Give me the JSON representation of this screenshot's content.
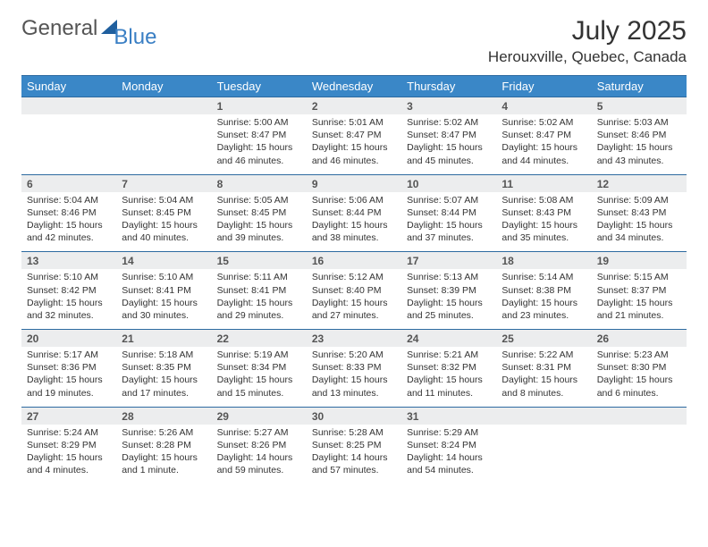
{
  "brand": {
    "general": "General",
    "blue": "Blue"
  },
  "title": "July 2025",
  "location": "Herouxville, Quebec, Canada",
  "colors": {
    "header_bg": "#3a87c7",
    "header_border": "#2d6aa0",
    "daynum_bg": "#ecedee",
    "text": "#333333",
    "logo_gray": "#555555",
    "logo_blue": "#3a7fc4",
    "triangle": "#1f5f9e"
  },
  "day_headers": [
    "Sunday",
    "Monday",
    "Tuesday",
    "Wednesday",
    "Thursday",
    "Friday",
    "Saturday"
  ],
  "weeks": [
    {
      "nums": [
        "",
        "",
        "1",
        "2",
        "3",
        "4",
        "5"
      ],
      "cells": [
        null,
        null,
        {
          "sunrise": "Sunrise: 5:00 AM",
          "sunset": "Sunset: 8:47 PM",
          "day1": "Daylight: 15 hours",
          "day2": "and 46 minutes."
        },
        {
          "sunrise": "Sunrise: 5:01 AM",
          "sunset": "Sunset: 8:47 PM",
          "day1": "Daylight: 15 hours",
          "day2": "and 46 minutes."
        },
        {
          "sunrise": "Sunrise: 5:02 AM",
          "sunset": "Sunset: 8:47 PM",
          "day1": "Daylight: 15 hours",
          "day2": "and 45 minutes."
        },
        {
          "sunrise": "Sunrise: 5:02 AM",
          "sunset": "Sunset: 8:47 PM",
          "day1": "Daylight: 15 hours",
          "day2": "and 44 minutes."
        },
        {
          "sunrise": "Sunrise: 5:03 AM",
          "sunset": "Sunset: 8:46 PM",
          "day1": "Daylight: 15 hours",
          "day2": "and 43 minutes."
        }
      ]
    },
    {
      "nums": [
        "6",
        "7",
        "8",
        "9",
        "10",
        "11",
        "12"
      ],
      "cells": [
        {
          "sunrise": "Sunrise: 5:04 AM",
          "sunset": "Sunset: 8:46 PM",
          "day1": "Daylight: 15 hours",
          "day2": "and 42 minutes."
        },
        {
          "sunrise": "Sunrise: 5:04 AM",
          "sunset": "Sunset: 8:45 PM",
          "day1": "Daylight: 15 hours",
          "day2": "and 40 minutes."
        },
        {
          "sunrise": "Sunrise: 5:05 AM",
          "sunset": "Sunset: 8:45 PM",
          "day1": "Daylight: 15 hours",
          "day2": "and 39 minutes."
        },
        {
          "sunrise": "Sunrise: 5:06 AM",
          "sunset": "Sunset: 8:44 PM",
          "day1": "Daylight: 15 hours",
          "day2": "and 38 minutes."
        },
        {
          "sunrise": "Sunrise: 5:07 AM",
          "sunset": "Sunset: 8:44 PM",
          "day1": "Daylight: 15 hours",
          "day2": "and 37 minutes."
        },
        {
          "sunrise": "Sunrise: 5:08 AM",
          "sunset": "Sunset: 8:43 PM",
          "day1": "Daylight: 15 hours",
          "day2": "and 35 minutes."
        },
        {
          "sunrise": "Sunrise: 5:09 AM",
          "sunset": "Sunset: 8:43 PM",
          "day1": "Daylight: 15 hours",
          "day2": "and 34 minutes."
        }
      ]
    },
    {
      "nums": [
        "13",
        "14",
        "15",
        "16",
        "17",
        "18",
        "19"
      ],
      "cells": [
        {
          "sunrise": "Sunrise: 5:10 AM",
          "sunset": "Sunset: 8:42 PM",
          "day1": "Daylight: 15 hours",
          "day2": "and 32 minutes."
        },
        {
          "sunrise": "Sunrise: 5:10 AM",
          "sunset": "Sunset: 8:41 PM",
          "day1": "Daylight: 15 hours",
          "day2": "and 30 minutes."
        },
        {
          "sunrise": "Sunrise: 5:11 AM",
          "sunset": "Sunset: 8:41 PM",
          "day1": "Daylight: 15 hours",
          "day2": "and 29 minutes."
        },
        {
          "sunrise": "Sunrise: 5:12 AM",
          "sunset": "Sunset: 8:40 PM",
          "day1": "Daylight: 15 hours",
          "day2": "and 27 minutes."
        },
        {
          "sunrise": "Sunrise: 5:13 AM",
          "sunset": "Sunset: 8:39 PM",
          "day1": "Daylight: 15 hours",
          "day2": "and 25 minutes."
        },
        {
          "sunrise": "Sunrise: 5:14 AM",
          "sunset": "Sunset: 8:38 PM",
          "day1": "Daylight: 15 hours",
          "day2": "and 23 minutes."
        },
        {
          "sunrise": "Sunrise: 5:15 AM",
          "sunset": "Sunset: 8:37 PM",
          "day1": "Daylight: 15 hours",
          "day2": "and 21 minutes."
        }
      ]
    },
    {
      "nums": [
        "20",
        "21",
        "22",
        "23",
        "24",
        "25",
        "26"
      ],
      "cells": [
        {
          "sunrise": "Sunrise: 5:17 AM",
          "sunset": "Sunset: 8:36 PM",
          "day1": "Daylight: 15 hours",
          "day2": "and 19 minutes."
        },
        {
          "sunrise": "Sunrise: 5:18 AM",
          "sunset": "Sunset: 8:35 PM",
          "day1": "Daylight: 15 hours",
          "day2": "and 17 minutes."
        },
        {
          "sunrise": "Sunrise: 5:19 AM",
          "sunset": "Sunset: 8:34 PM",
          "day1": "Daylight: 15 hours",
          "day2": "and 15 minutes."
        },
        {
          "sunrise": "Sunrise: 5:20 AM",
          "sunset": "Sunset: 8:33 PM",
          "day1": "Daylight: 15 hours",
          "day2": "and 13 minutes."
        },
        {
          "sunrise": "Sunrise: 5:21 AM",
          "sunset": "Sunset: 8:32 PM",
          "day1": "Daylight: 15 hours",
          "day2": "and 11 minutes."
        },
        {
          "sunrise": "Sunrise: 5:22 AM",
          "sunset": "Sunset: 8:31 PM",
          "day1": "Daylight: 15 hours",
          "day2": "and 8 minutes."
        },
        {
          "sunrise": "Sunrise: 5:23 AM",
          "sunset": "Sunset: 8:30 PM",
          "day1": "Daylight: 15 hours",
          "day2": "and 6 minutes."
        }
      ]
    },
    {
      "nums": [
        "27",
        "28",
        "29",
        "30",
        "31",
        "",
        ""
      ],
      "cells": [
        {
          "sunrise": "Sunrise: 5:24 AM",
          "sunset": "Sunset: 8:29 PM",
          "day1": "Daylight: 15 hours",
          "day2": "and 4 minutes."
        },
        {
          "sunrise": "Sunrise: 5:26 AM",
          "sunset": "Sunset: 8:28 PM",
          "day1": "Daylight: 15 hours",
          "day2": "and 1 minute."
        },
        {
          "sunrise": "Sunrise: 5:27 AM",
          "sunset": "Sunset: 8:26 PM",
          "day1": "Daylight: 14 hours",
          "day2": "and 59 minutes."
        },
        {
          "sunrise": "Sunrise: 5:28 AM",
          "sunset": "Sunset: 8:25 PM",
          "day1": "Daylight: 14 hours",
          "day2": "and 57 minutes."
        },
        {
          "sunrise": "Sunrise: 5:29 AM",
          "sunset": "Sunset: 8:24 PM",
          "day1": "Daylight: 14 hours",
          "day2": "and 54 minutes."
        },
        null,
        null
      ]
    }
  ]
}
